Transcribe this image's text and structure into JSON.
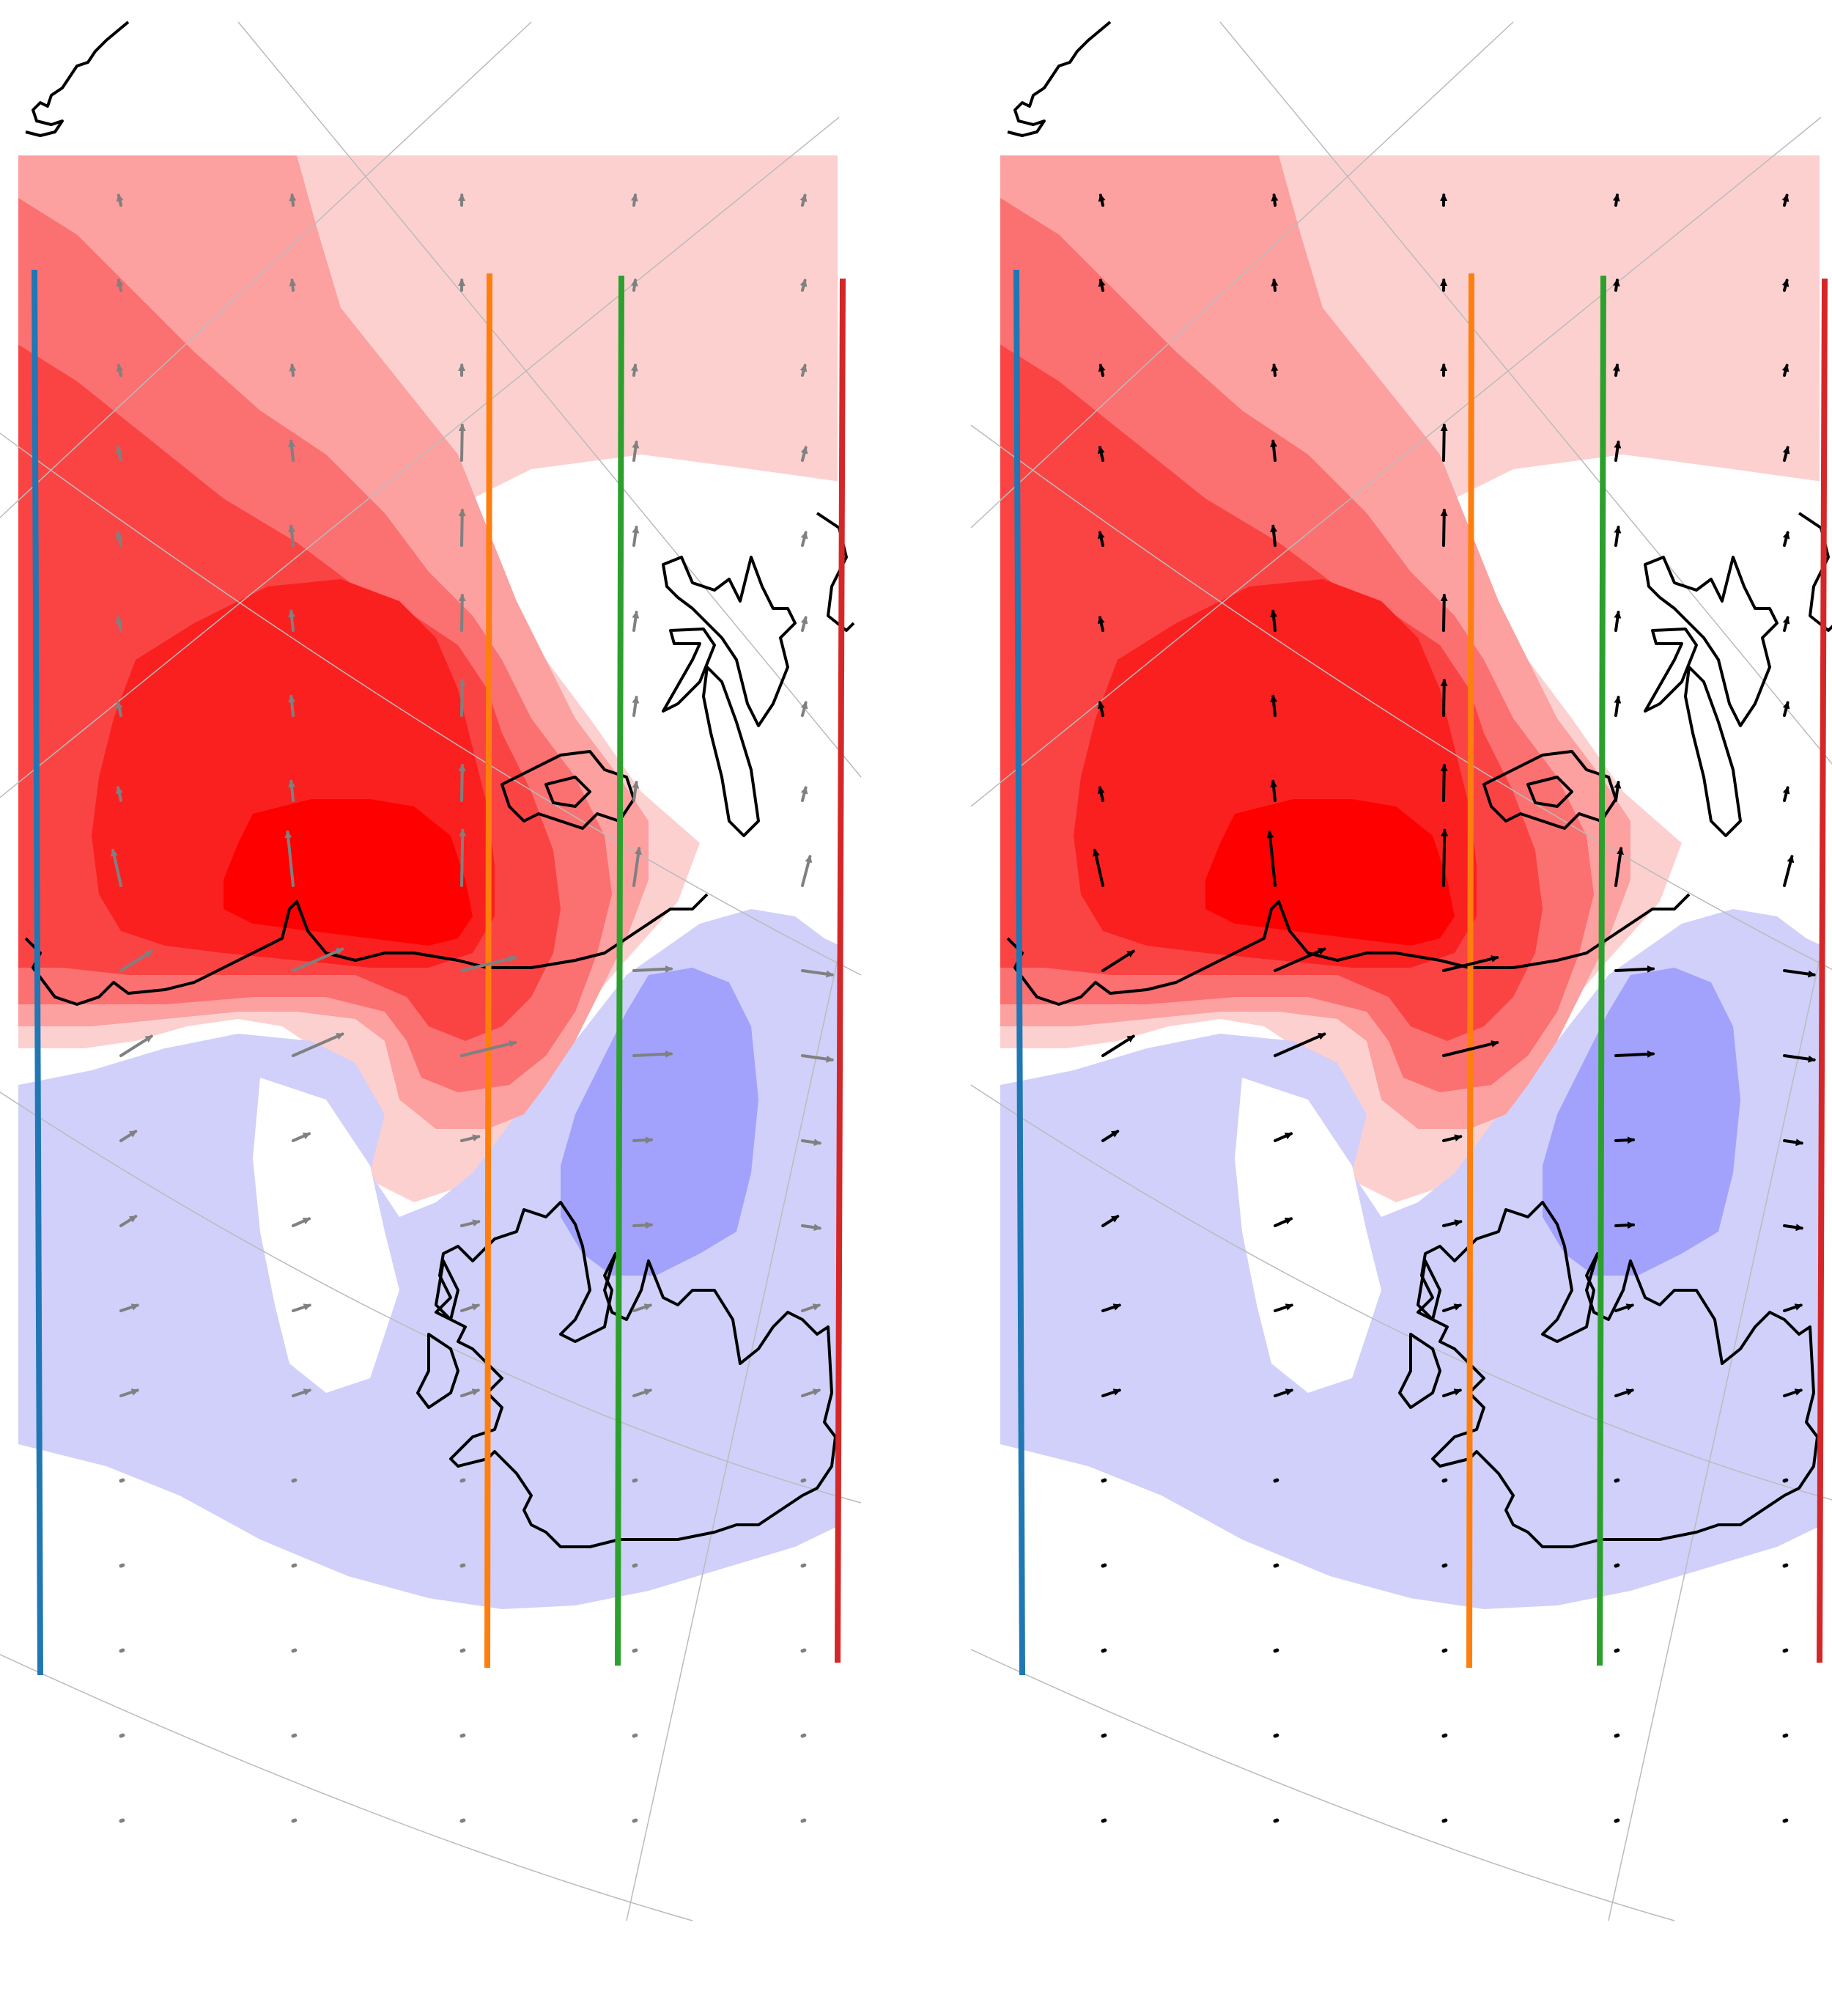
{
  "figure": {
    "panels": [
      {
        "id": "left",
        "vector_color": "#808080"
      },
      {
        "id": "right",
        "vector_color": "#000000"
      }
    ],
    "transect_colors": [
      "#1f77b4",
      "#ff7f0e",
      "#2ca02c",
      "#d62728"
    ],
    "anomaly_palette": {
      "pos1": "#fdd0d0",
      "pos2": "#fca0a0",
      "pos3": "#fb7070",
      "pos4": "#fa4444",
      "pos5": "#fa2020",
      "pos6": "#ff0000",
      "neg1": "#d0d0fa",
      "neg2": "#a2a2fc"
    },
    "coastline_color": "#000000",
    "graticule_color": "#bbbbbb"
  }
}
